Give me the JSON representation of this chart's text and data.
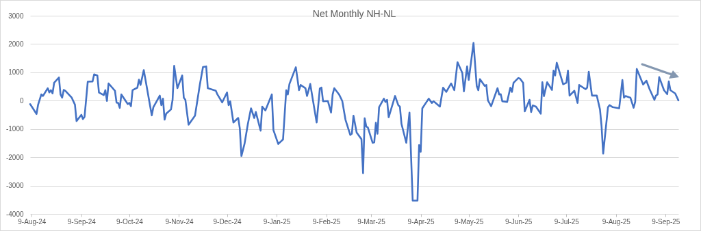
{
  "chart_data": {
    "type": "line",
    "title": "Net Monthly NH-NL",
    "color": "#4472c4",
    "grid": "y",
    "xlim": [
      "2024-08-08",
      "2025-09-17"
    ],
    "xticks": [
      {
        "value": "2024-08-09",
        "label": "9-Aug-24"
      },
      {
        "value": "2024-09-09",
        "label": "9-Sep-24"
      },
      {
        "value": "2024-10-09",
        "label": "9-Oct-24"
      },
      {
        "value": "2024-11-09",
        "label": "9-Nov-24"
      },
      {
        "value": "2024-12-09",
        "label": "9-Dec-24"
      },
      {
        "value": "2025-01-09",
        "label": "9-Jan-25"
      },
      {
        "value": "2025-02-09",
        "label": "9-Feb-25"
      },
      {
        "value": "2025-03-09",
        "label": "9-Mar-25"
      },
      {
        "value": "2025-04-09",
        "label": "9-Apr-25"
      },
      {
        "value": "2025-05-09",
        "label": "9-May-25"
      },
      {
        "value": "2025-06-09",
        "label": "9-Jun-25"
      },
      {
        "value": "2025-07-09",
        "label": "9-Jul-25"
      },
      {
        "value": "2025-08-09",
        "label": "9-Aug-25"
      },
      {
        "value": "2025-09-09",
        "label": "9-Sep-25"
      }
    ],
    "ylim": [
      -4000,
      3000
    ],
    "yticks": [
      -4000,
      -3000,
      -2000,
      -1000,
      0,
      1000,
      2000,
      3000
    ],
    "x": [
      "2024-08-08",
      "2024-08-12",
      "2024-08-13",
      "2024-08-15",
      "2024-08-16",
      "2024-08-19",
      "2024-08-20",
      "2024-08-21",
      "2024-08-22",
      "2024-08-23",
      "2024-08-26",
      "2024-08-27",
      "2024-08-28",
      "2024-08-29",
      "2024-08-30",
      "2024-09-03",
      "2024-09-05",
      "2024-09-06",
      "2024-09-09",
      "2024-09-10",
      "2024-09-11",
      "2024-09-13",
      "2024-09-16",
      "2024-09-17",
      "2024-09-19",
      "2024-09-20",
      "2024-09-23",
      "2024-09-24",
      "2024-09-25",
      "2024-09-26",
      "2024-09-30",
      "2024-10-01",
      "2024-10-02",
      "2024-10-03",
      "2024-10-04",
      "2024-10-08",
      "2024-10-09",
      "2024-10-10",
      "2024-10-11",
      "2024-10-14",
      "2024-10-15",
      "2024-10-16",
      "2024-10-18",
      "2024-10-23",
      "2024-10-24",
      "2024-10-28",
      "2024-10-29",
      "2024-10-30",
      "2024-10-31",
      "2024-11-01",
      "2024-11-04",
      "2024-11-05",
      "2024-11-06",
      "2024-11-08",
      "2024-11-11",
      "2024-11-12",
      "2024-11-13",
      "2024-11-15",
      "2024-11-19",
      "2024-11-22",
      "2024-11-24",
      "2024-11-26",
      "2024-11-27",
      "2024-12-02",
      "2024-12-03",
      "2024-12-06",
      "2024-12-09",
      "2024-12-10",
      "2024-12-11",
      "2024-12-13",
      "2024-12-16",
      "2024-12-17",
      "2024-12-18",
      "2024-12-20",
      "2024-12-22",
      "2024-12-24",
      "2024-12-26",
      "2024-12-27",
      "2024-12-30",
      "2024-12-31",
      "2025-01-02",
      "2025-01-06",
      "2025-01-07",
      "2025-01-10",
      "2025-01-13",
      "2025-01-15",
      "2025-01-16",
      "2025-01-17",
      "2025-01-21",
      "2025-01-23",
      "2025-01-24",
      "2025-01-27",
      "2025-01-28",
      "2025-01-30",
      "2025-02-03",
      "2025-02-05",
      "2025-02-06",
      "2025-02-07",
      "2025-02-10",
      "2025-02-12",
      "2025-02-13",
      "2025-02-14",
      "2025-02-17",
      "2025-02-19",
      "2025-02-21",
      "2025-02-24",
      "2025-02-25",
      "2025-02-26",
      "2025-02-28",
      "2025-03-03",
      "2025-03-04",
      "2025-03-05",
      "2025-03-06",
      "2025-03-07",
      "2025-03-10",
      "2025-03-11",
      "2025-03-12",
      "2025-03-13",
      "2025-03-14",
      "2025-03-17",
      "2025-03-18",
      "2025-03-19",
      "2025-03-20",
      "2025-03-24",
      "2025-03-26",
      "2025-03-27",
      "2025-03-28",
      "2025-03-31",
      "2025-04-02",
      "2025-04-04",
      "2025-04-07",
      "2025-04-08",
      "2025-04-09",
      "2025-04-10",
      "2025-04-14",
      "2025-04-16",
      "2025-04-17",
      "2025-04-21",
      "2025-04-23",
      "2025-04-25",
      "2025-04-28",
      "2025-04-30",
      "2025-05-02",
      "2025-05-05",
      "2025-05-06",
      "2025-05-08",
      "2025-05-09",
      "2025-05-12",
      "2025-05-14",
      "2025-05-15",
      "2025-05-16",
      "2025-05-19",
      "2025-05-20",
      "2025-05-21",
      "2025-05-23",
      "2025-05-27",
      "2025-05-28",
      "2025-05-29",
      "2025-05-30",
      "2025-06-02",
      "2025-06-04",
      "2025-06-05",
      "2025-06-06",
      "2025-06-09",
      "2025-06-10",
      "2025-06-12",
      "2025-06-13",
      "2025-06-16",
      "2025-06-17",
      "2025-06-18",
      "2025-06-20",
      "2025-06-23",
      "2025-06-24",
      "2025-06-25",
      "2025-06-27",
      "2025-06-30",
      "2025-07-01",
      "2025-07-02",
      "2025-07-03",
      "2025-07-07",
      "2025-07-09",
      "2025-07-10",
      "2025-07-11",
      "2025-07-14",
      "2025-07-16",
      "2025-07-17",
      "2025-07-21",
      "2025-07-22",
      "2025-07-23",
      "2025-07-25",
      "2025-07-28",
      "2025-07-30",
      "2025-07-31",
      "2025-08-01",
      "2025-08-04",
      "2025-08-05",
      "2025-08-07",
      "2025-08-11",
      "2025-08-13",
      "2025-08-14",
      "2025-08-15",
      "2025-08-18",
      "2025-08-20",
      "2025-08-21",
      "2025-08-22",
      "2025-08-26",
      "2025-08-28",
      "2025-08-30",
      "2025-09-02",
      "2025-09-03",
      "2025-09-04",
      "2025-09-05",
      "2025-09-08",
      "2025-09-10",
      "2025-09-11",
      "2025-09-12",
      "2025-09-15",
      "2025-09-17"
    ],
    "values": [
      -120,
      -470,
      -140,
      220,
      165,
      440,
      290,
      370,
      255,
      630,
      820,
      220,
      105,
      380,
      350,
      105,
      -140,
      -720,
      -500,
      -650,
      -570,
      670,
      680,
      930,
      890,
      290,
      195,
      370,
      -10,
      610,
      350,
      -70,
      -80,
      -255,
      220,
      -120,
      -80,
      -195,
      370,
      460,
      740,
      555,
      1080,
      -520,
      -230,
      180,
      -160,
      70,
      -670,
      -460,
      -310,
      30,
      1230,
      440,
      890,
      105,
      30,
      -850,
      -530,
      555,
      1190,
      1210,
      440,
      350,
      220,
      -60,
      290,
      -160,
      -20,
      -770,
      -610,
      -980,
      -1960,
      -1510,
      -830,
      -270,
      -610,
      -400,
      -1060,
      -210,
      -345,
      220,
      -1040,
      -1530,
      -1370,
      370,
      220,
      590,
      1180,
      370,
      555,
      440,
      165,
      590,
      -770,
      430,
      460,
      -20,
      -10,
      -420,
      220,
      440,
      220,
      -10,
      -670,
      -1210,
      -1170,
      -530,
      -1130,
      -1360,
      -2560,
      -620,
      -910,
      -950,
      -1490,
      -1470,
      -780,
      -1170,
      -230,
      70,
      -45,
      30,
      -585,
      165,
      -160,
      -210,
      -820,
      -1490,
      -420,
      -3530,
      -3530,
      -1570,
      -1810,
      -270,
      70,
      -80,
      -20,
      -210,
      460,
      310,
      610,
      370,
      1360,
      980,
      330,
      1210,
      730,
      2040,
      520,
      370,
      760,
      520,
      555,
      10,
      -195,
      440,
      220,
      230,
      -20,
      -45,
      460,
      310,
      630,
      800,
      780,
      630,
      -380,
      30,
      -400,
      -170,
      -210,
      -460,
      650,
      160,
      650,
      380,
      1060,
      890,
      1340,
      580,
      630,
      1060,
      180,
      350,
      -80,
      555,
      405,
      460,
      1020,
      180,
      180,
      -310,
      -910,
      -1870,
      -230,
      -160,
      -230,
      -270,
      730,
      105,
      165,
      105,
      -250,
      -45,
      1120,
      570,
      705,
      405,
      30,
      180,
      220,
      830,
      370,
      230,
      680,
      370,
      255,
      10
    ]
  }
}
